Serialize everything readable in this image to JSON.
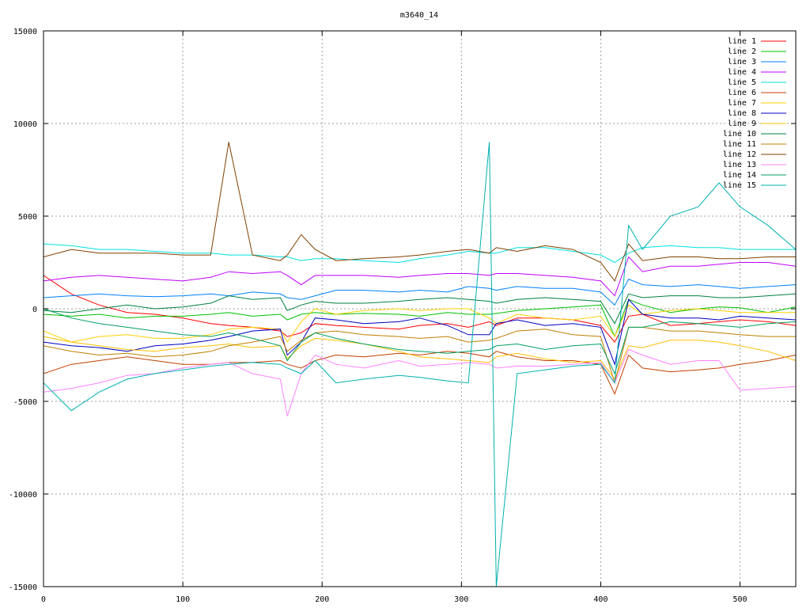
{
  "chart_data": {
    "type": "line",
    "title": "m3640_14",
    "xlabel": "",
    "ylabel": "",
    "xlim": [
      0,
      540
    ],
    "ylim": [
      -15000,
      15000
    ],
    "xticks": [
      0,
      100,
      200,
      300,
      400,
      500
    ],
    "xtick_labels": [
      "0",
      "100",
      "200",
      "300",
      "400",
      "500"
    ],
    "yticks": [
      -15000,
      -10000,
      -5000,
      0,
      5000,
      10000,
      15000
    ],
    "ytick_labels": [
      "-15000",
      "-10000",
      "-5000",
      "0",
      "5000",
      "10000",
      "15000"
    ],
    "grid": true,
    "legend_position": "top-right",
    "x": [
      0,
      20,
      40,
      60,
      80,
      100,
      120,
      133,
      150,
      170,
      175,
      185,
      195,
      210,
      230,
      255,
      270,
      290,
      305,
      320,
      325,
      340,
      360,
      380,
      400,
      410,
      420,
      430,
      450,
      470,
      485,
      500,
      520,
      540
    ],
    "series": [
      {
        "name": "line 1",
        "color": "#ff0000",
        "values": [
          1800,
          800,
          200,
          -200,
          -300,
          -500,
          -800,
          -900,
          -1000,
          -1200,
          -1500,
          -1300,
          -800,
          -900,
          -1000,
          -1100,
          -900,
          -800,
          -1000,
          -700,
          -900,
          -500,
          -500,
          -600,
          -900,
          -1800,
          -400,
          -300,
          -900,
          -800,
          -700,
          -600,
          -700,
          -900
        ]
      },
      {
        "name": "line 2",
        "color": "#00c000",
        "values": [
          -300,
          -400,
          -300,
          -500,
          -400,
          -400,
          -300,
          -200,
          -400,
          -300,
          -600,
          -300,
          -200,
          -300,
          -250,
          -300,
          -400,
          -200,
          -300,
          -300,
          -250,
          -100,
          0,
          100,
          200,
          -1500,
          500,
          200,
          -200,
          0,
          100,
          50,
          -200,
          100
        ]
      },
      {
        "name": "line 3",
        "color": "#0080ff",
        "values": [
          600,
          700,
          800,
          700,
          650,
          700,
          800,
          700,
          900,
          800,
          600,
          500,
          700,
          1000,
          1000,
          900,
          1000,
          900,
          1200,
          1100,
          1000,
          1200,
          1100,
          1100,
          900,
          200,
          1600,
          1300,
          1200,
          1300,
          1200,
          1100,
          1200,
          1300
        ]
      },
      {
        "name": "line 4",
        "color": "#c000ff",
        "values": [
          1500,
          1700,
          1800,
          1700,
          1600,
          1500,
          1700,
          2000,
          1900,
          2000,
          1800,
          1300,
          1800,
          1800,
          1800,
          1700,
          1800,
          1900,
          1900,
          1800,
          1900,
          1900,
          1800,
          1700,
          1500,
          700,
          2800,
          2000,
          2300,
          2300,
          2400,
          2500,
          2500,
          2300
        ]
      },
      {
        "name": "line 5",
        "color": "#00e0e0",
        "values": [
          3500,
          3400,
          3200,
          3200,
          3100,
          3000,
          3000,
          2900,
          2900,
          2800,
          2800,
          2600,
          2700,
          2700,
          2600,
          2500,
          2700,
          2900,
          3100,
          3000,
          3000,
          3300,
          3300,
          3100,
          2900,
          2500,
          3000,
          3300,
          3400,
          3300,
          3300,
          3200,
          3200,
          3200
        ]
      },
      {
        "name": "line 6",
        "color": "#c04000",
        "values": [
          -3500,
          -3000,
          -2800,
          -2600,
          -2800,
          -3000,
          -3000,
          -2900,
          -2900,
          -2800,
          -3000,
          -3200,
          -2800,
          -2500,
          -2600,
          -2400,
          -2500,
          -2300,
          -2400,
          -2600,
          -2300,
          -2600,
          -2800,
          -2800,
          -3000,
          -4600,
          -2500,
          -3200,
          -3400,
          -3300,
          -3200,
          -3000,
          -2800,
          -2500
        ]
      },
      {
        "name": "line 7",
        "color": "#ffd000",
        "values": [
          -1200,
          -1800,
          -1500,
          -1400,
          -1600,
          -1600,
          -1400,
          -1100,
          -1000,
          -1100,
          -1800,
          -700,
          0,
          -300,
          -100,
          0,
          -100,
          0,
          0,
          -500,
          -800,
          -300,
          -500,
          -600,
          -400,
          -1500,
          200,
          -300,
          -100,
          0,
          -100,
          -200,
          -200,
          -200
        ]
      },
      {
        "name": "line 8",
        "color": "#0000c0",
        "values": [
          -1800,
          -2000,
          -2100,
          -2300,
          -2000,
          -1900,
          -1700,
          -1500,
          -1200,
          -1100,
          -2500,
          -1800,
          -500,
          -600,
          -800,
          -700,
          -500,
          -900,
          -1400,
          -1400,
          -800,
          -600,
          -900,
          -800,
          -1000,
          -3000,
          500,
          -300,
          -500,
          -500,
          -600,
          -400,
          -500,
          -600
        ]
      },
      {
        "name": "line 9",
        "color": "#ffc000",
        "values": [
          -1500,
          -1800,
          -2000,
          -2200,
          -2300,
          -2100,
          -2000,
          -1900,
          -2100,
          -2000,
          -2700,
          -2000,
          -1600,
          -1700,
          -1900,
          -2300,
          -2600,
          -2700,
          -2800,
          -2900,
          -2600,
          -2400,
          -2700,
          -2900,
          -2800,
          -3800,
          -2000,
          -2100,
          -1700,
          -1700,
          -1800,
          -2000,
          -2300,
          -2800
        ]
      },
      {
        "name": "line 10",
        "color": "#008040",
        "values": [
          -100,
          -200,
          0,
          200,
          0,
          100,
          300,
          700,
          500,
          600,
          -100,
          200,
          400,
          300,
          300,
          400,
          500,
          600,
          500,
          400,
          300,
          500,
          600,
          500,
          400,
          -800,
          800,
          600,
          700,
          700,
          600,
          600,
          700,
          800
        ]
      },
      {
        "name": "line 11",
        "color": "#c08000",
        "values": [
          -2000,
          -2300,
          -2500,
          -2400,
          -2600,
          -2500,
          -2300,
          -2000,
          -1800,
          -1500,
          -2300,
          -1700,
          -1300,
          -1200,
          -1400,
          -1500,
          -1600,
          -1500,
          -1800,
          -1700,
          -1600,
          -1200,
          -1100,
          -1400,
          -1500,
          -4000,
          -1000,
          -1000,
          -1200,
          -1200,
          -1300,
          -1400,
          -1500,
          -1500
        ]
      },
      {
        "name": "line 12",
        "color": "#804000",
        "values": [
          2800,
          3200,
          3000,
          3000,
          3000,
          2900,
          2900,
          9000,
          2900,
          2600,
          2900,
          4000,
          3200,
          2600,
          2700,
          2800,
          2900,
          3100,
          3200,
          3000,
          3300,
          3100,
          3400,
          3200,
          2500,
          1500,
          3500,
          2600,
          2800,
          2800,
          2700,
          2700,
          2800,
          2800
        ]
      },
      {
        "name": "line 13",
        "color": "#ff80ff",
        "values": [
          -4500,
          -4300,
          -4000,
          -3600,
          -3500,
          -3200,
          -3000,
          -2900,
          -3500,
          -3800,
          -5800,
          -3500,
          -2500,
          -3000,
          -3200,
          -2800,
          -3100,
          -3000,
          -2900,
          -3000,
          -3200,
          -3100,
          -3100,
          -3000,
          -2900,
          -4000,
          -2200,
          -2500,
          -3000,
          -2800,
          -2800,
          -4400,
          -4300,
          -4200
        ]
      },
      {
        "name": "line 14",
        "color": "#00a060",
        "values": [
          0,
          -500,
          -800,
          -1000,
          -1200,
          -1400,
          -1500,
          -1300,
          -1600,
          -2000,
          -2800,
          -1800,
          -1300,
          -1600,
          -1900,
          -2200,
          -2300,
          -2400,
          -2300,
          -2200,
          -2000,
          -1900,
          -2200,
          -2000,
          -1900,
          -3500,
          -1000,
          -1000,
          -700,
          -800,
          -900,
          -1000,
          -800,
          -700
        ]
      },
      {
        "name": "line 15",
        "color": "#00b0b0",
        "values": [
          -4000,
          -5500,
          -4500,
          -3800,
          -3500,
          -3300,
          -3100,
          -3000,
          -2900,
          -3000,
          -3200,
          -3500,
          -2800,
          -4000,
          -3800,
          -3600,
          -3700,
          -3900,
          -4000,
          9000,
          -15000,
          -3500,
          -3300,
          -3100,
          -3000,
          -4000,
          4500,
          3200,
          5000,
          5500,
          6800,
          5500,
          4500,
          3200
        ]
      }
    ]
  }
}
